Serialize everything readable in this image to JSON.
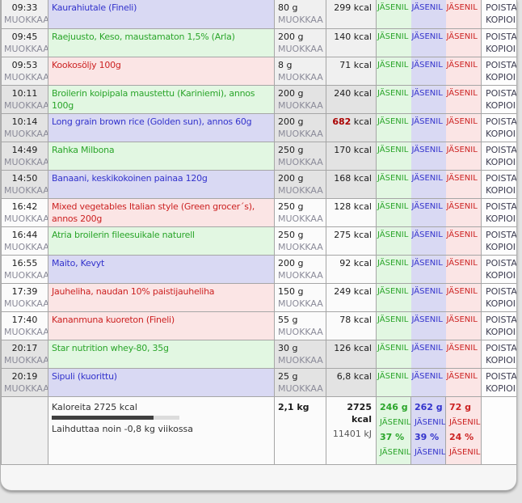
{
  "table": {
    "labels": {
      "edit": "MUOKKAA",
      "delete": "POISTA",
      "copy": "KOPIOI",
      "members": "JÄSENIL",
      "kcal_unit": "kcal"
    },
    "rows": [
      {
        "time": "09:33",
        "name": "Kaurahiutale (Fineli)",
        "color": "blue",
        "shade": "light",
        "amount": "80 g",
        "kcal": "299",
        "kcal_highlight": false
      },
      {
        "time": "09:45",
        "name": "Raejuusto, Keso, maustamaton 1,5% (Arla)",
        "color": "green",
        "shade": "light",
        "amount": "200 g",
        "kcal": "140",
        "kcal_highlight": false
      },
      {
        "time": "09:53",
        "name": "Kookosöljy 100g",
        "color": "red",
        "shade": "light",
        "amount": "8 g",
        "kcal": "71",
        "kcal_highlight": false
      },
      {
        "time": "10:11",
        "name": "Broilerin koipipala maustettu (Kariniemi), annos 100g",
        "color": "green",
        "shade": "mid",
        "amount": "200 g",
        "kcal": "240",
        "kcal_highlight": false
      },
      {
        "time": "10:14",
        "name": "Long grain brown rice (Golden sun), annos 60g",
        "color": "blue",
        "shade": "mid",
        "amount": "200 g",
        "kcal": "682",
        "kcal_highlight": true
      },
      {
        "time": "14:49",
        "name": "Rahka Milbona",
        "color": "green",
        "shade": "mid",
        "amount": "250 g",
        "kcal": "170",
        "kcal_highlight": false
      },
      {
        "time": "14:50",
        "name": "Banaani, keskikokoinen painaa 120g",
        "color": "blue",
        "shade": "mid",
        "amount": "200 g",
        "kcal": "168",
        "kcal_highlight": false
      },
      {
        "time": "16:42",
        "name": "Mixed vegetables Italian style (Green grocer´s), annos 200g",
        "color": "red",
        "shade": "white",
        "amount": "250 g",
        "kcal": "128",
        "kcal_highlight": false
      },
      {
        "time": "16:44",
        "name": "Atria broilerin fileesuikale naturell",
        "color": "green",
        "shade": "white",
        "amount": "250 g",
        "kcal": "275",
        "kcal_highlight": false
      },
      {
        "time": "16:55",
        "name": "Maito, Kevyt",
        "color": "blue",
        "shade": "white",
        "amount": "200 g",
        "kcal": "92",
        "kcal_highlight": false
      },
      {
        "time": "17:39",
        "name": "Jauheliha, naudan 10% paistijauheliha",
        "color": "red",
        "shade": "white",
        "amount": "150 g",
        "kcal": "249",
        "kcal_highlight": false
      },
      {
        "time": "17:40",
        "name": "Kananmuna kuoreton (Fineli)",
        "color": "red",
        "shade": "white",
        "amount": "55 g",
        "kcal": "78",
        "kcal_highlight": false
      },
      {
        "time": "20:17",
        "name": "Star nutrition whey-80, 35g",
        "color": "green",
        "shade": "mid",
        "amount": "30 g",
        "kcal": "126",
        "kcal_highlight": false
      },
      {
        "time": "20:19",
        "name": "Sipuli (kuorittu)",
        "color": "blue",
        "shade": "mid",
        "amount": "25 g",
        "kcal": "6,8",
        "kcal_highlight": false
      }
    ],
    "footer": {
      "calories_line": "Kaloreita 2725 kcal",
      "progress_percent": 80,
      "weekly_line": "Laihduttaa noin -0,8 kg viikossa",
      "total_weight": "2,1 kg",
      "total_kcal": "2725 kcal",
      "total_kj": "11401 kJ",
      "macros": [
        {
          "grams": "246 g",
          "percent": "37 %",
          "color": "green"
        },
        {
          "grams": "262 g",
          "percent": "39 %",
          "color": "blue"
        },
        {
          "grams": "72 g",
          "percent": "24 %",
          "color": "red"
        }
      ]
    }
  },
  "colors": {
    "green_text": "#2aa52a",
    "green_bg": "#e2f7e2",
    "blue_text": "#3333cc",
    "blue_bg": "#d9d9f3",
    "red_text": "#cc2222",
    "red_bg": "#fbe5e5",
    "highlight_kcal": "#aa0000",
    "row_shade_light": "#f0f0f0",
    "row_shade_mid": "#e3e3e3",
    "row_shade_white": "#fbfbfb",
    "border": "#a6a6a6",
    "edit_link": "#8b8b99",
    "action_link": "#3e3e52",
    "progress_fill": "#3f3f3f",
    "progress_track": "#dcdcdc"
  }
}
